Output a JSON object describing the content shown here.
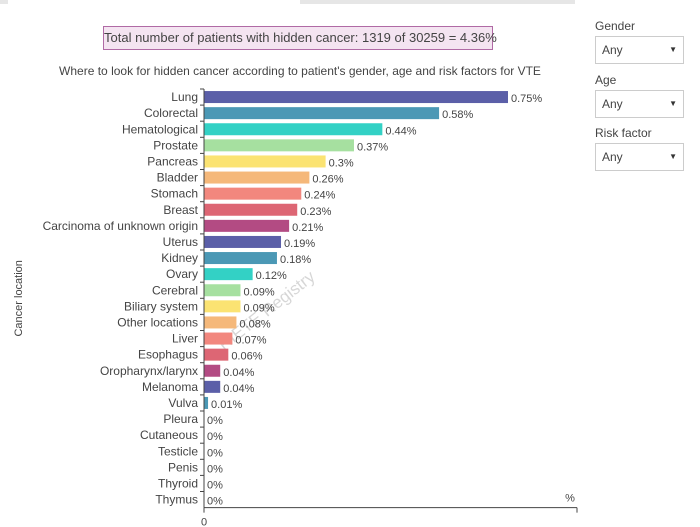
{
  "summary": {
    "prefix": "Total number of patients with hidden cancer: ",
    "figures": "1319 of 30259 = 4.36%"
  },
  "filters": [
    {
      "label": "Gender",
      "value": "Any",
      "arrow": "▼",
      "icon": "chevron-down-icon"
    },
    {
      "label": "Age",
      "value": "Any",
      "arrow": "▼",
      "icon": "chevron-down-icon"
    },
    {
      "label": "Risk factor",
      "value": "Any",
      "arrow": "▼",
      "icon": "chevron-down-icon"
    }
  ],
  "chart_data": {
    "type": "bar",
    "orientation": "horizontal",
    "title": "Where to look for hidden cancer according to patient's gender, age and risk factors for VTE",
    "ylabel": "Cancer location",
    "xlabel": "%",
    "x_tick_labels": [
      "0"
    ],
    "xlim": [
      0,
      0.8
    ],
    "value_suffix": "%",
    "watermark": "RIETE Registry",
    "categories": [
      "Lung",
      "Colorectal",
      "Hematological",
      "Prostate",
      "Pancreas",
      "Bladder",
      "Stomach",
      "Breast",
      "Carcinoma of unknown origin",
      "Uterus",
      "Kidney",
      "Ovary",
      "Cerebral",
      "Biliary system",
      "Other locations",
      "Liver",
      "Esophagus",
      "Oropharynx/larynx",
      "Melanoma",
      "Vulva",
      "Pleura",
      "Cutaneous",
      "Testicle",
      "Penis",
      "Thyroid",
      "Thymus"
    ],
    "values": [
      0.75,
      0.58,
      0.44,
      0.37,
      0.3,
      0.26,
      0.24,
      0.23,
      0.21,
      0.19,
      0.18,
      0.12,
      0.09,
      0.09,
      0.08,
      0.07,
      0.06,
      0.04,
      0.04,
      0.01,
      0,
      0,
      0,
      0,
      0,
      0
    ],
    "colors": [
      "#5b5fa8",
      "#4b98b5",
      "#33d1c5",
      "#a6e0a0",
      "#fbe372",
      "#f5b87a",
      "#f2877e",
      "#dd6674",
      "#b34b83",
      "#5b5fa8",
      "#4b98b5",
      "#33d1c5",
      "#a6e0a0",
      "#fbe372",
      "#f5b87a",
      "#f2877e",
      "#dd6674",
      "#b34b83",
      "#5b5fa8",
      "#4b98b5",
      "#33d1c5",
      "#a6e0a0",
      "#fbe372",
      "#f5b87a",
      "#f2877e",
      "#dd6674"
    ]
  }
}
